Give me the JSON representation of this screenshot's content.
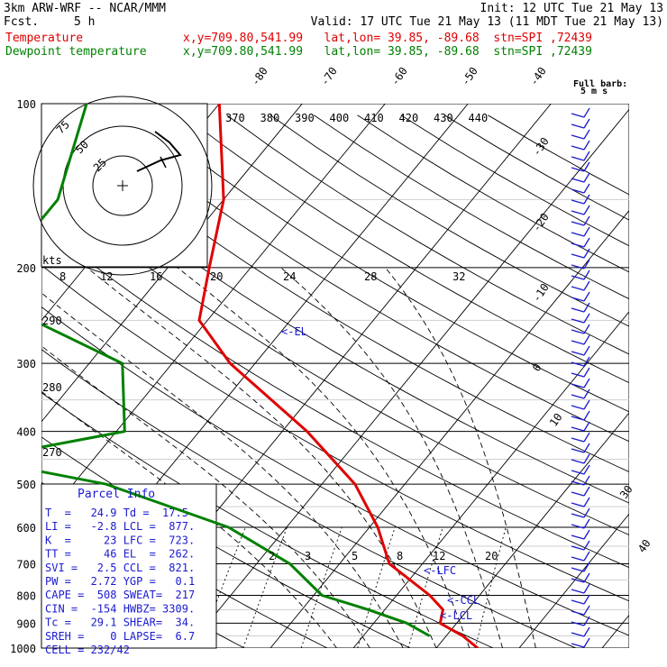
{
  "header": {
    "model": "3km ARW-WRF -- NCAR/MMM",
    "init": "Init: 12 UTC Tue 21 May 13",
    "fcst_label": "Fcst.",
    "fcst_value": "5 h",
    "valid": "Valid: 17 UTC Tue 21 May 13 (11 MDT Tue 21 May 13)",
    "temperature_label": "Temperature",
    "temperature_loc": "x,y=709.80,541.99   lat,lon= 39.85, -89.68  stn=SPI ,72439",
    "dewpoint_label": "Dewpoint temperature",
    "dewpoint_loc": "x,y=709.80,541.99   lat,lon= 39.85, -89.68  stn=SPI ,72439"
  },
  "colors": {
    "temperature": "#e00000",
    "dewpoint": "#008000",
    "parcel_box": "#1a1ad0",
    "wind_barbs": "#1a1ad0"
  },
  "barb_legend": {
    "title": "Full barb:",
    "value": "5 m s"
  },
  "hodograph": {
    "units": "kts",
    "ring_labels": [
      "25",
      "50",
      "75"
    ]
  },
  "chart_data": {
    "type": "line",
    "ylabel_values": [
      "100",
      "200",
      "300",
      "400",
      "500",
      "600",
      "700",
      "800",
      "900",
      "1000"
    ],
    "pressure_levels": [
      100,
      200,
      300,
      400,
      500,
      600,
      700,
      800,
      900,
      1000
    ],
    "temperature_isotherms": [
      "-80",
      "-70",
      "-60",
      "-50",
      "-40",
      "-30",
      "-20",
      "-10",
      "0",
      "10",
      "30",
      "40"
    ],
    "theta_labels_top": [
      "370",
      "380",
      "390",
      "400",
      "410",
      "420",
      "430",
      "440"
    ],
    "theta_labels_left": [
      "290",
      "280",
      "270"
    ],
    "mixing_ratio_labels_mid": [
      "8",
      "12",
      "16",
      "20",
      "24",
      "28",
      "32"
    ],
    "mixing_ratio_labels_low": [
      "2",
      "3",
      "5",
      "8",
      "12",
      "20"
    ],
    "series": [
      {
        "name": "Temperature",
        "pressure": [
          100,
          150,
          200,
          250,
          300,
          400,
          500,
          600,
          700,
          800,
          850,
          900,
          950,
          1000
        ],
        "values": [
          -60,
          -50,
          -45,
          -41,
          -33,
          -17,
          -6,
          1,
          6,
          14,
          17,
          18,
          22,
          25
        ]
      },
      {
        "name": "Dewpoint temperature",
        "pressure": [
          100,
          150,
          200,
          250,
          300,
          400,
          450,
          500,
          600,
          700,
          800,
          850,
          900,
          950
        ],
        "values": [
          -76,
          -70,
          -70,
          -61,
          -46,
          -39,
          -54,
          -36,
          -17,
          -6,
          1,
          8,
          14,
          18
        ]
      }
    ],
    "annotations": [
      "<-EL",
      "<-LFC",
      "<-CCL",
      "<-LCL"
    ]
  },
  "parcel_info": {
    "title": "Parcel Info",
    "rows": [
      "T  =   24.9 Td =  17.5",
      "LI =   -2.8 LCL =  877.",
      "K  =     23 LFC =  723.",
      "TT =     46 EL  =  262.",
      "SVI =   2.5 CCL =  821.",
      "PW =   2.72 YGP =   0.1",
      "CAPE =  508 SWEAT=  217",
      "CIN =  -154 HWBZ= 3309.",
      "Tc =   29.1 SHEAR=  34.",
      "SREH =    0 LAPSE=  6.7",
      "CELL = 232/42"
    ]
  }
}
